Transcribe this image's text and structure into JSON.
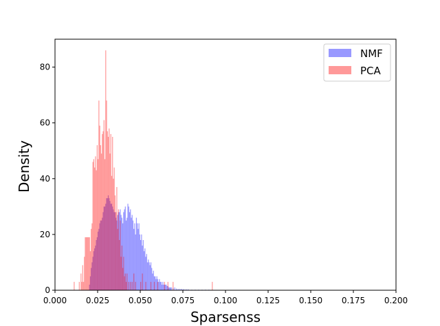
{
  "chart_data": {
    "type": "bar",
    "subtype": "overlapping-histogram",
    "title": "",
    "xlabel": "Sparsenss",
    "ylabel": "Density",
    "xlim": [
      0.0,
      0.2
    ],
    "ylim": [
      0,
      90
    ],
    "xticks": [
      "0.000",
      "0.025",
      "0.050",
      "0.075",
      "0.100",
      "0.125",
      "0.150",
      "0.175",
      "0.200"
    ],
    "yticks": [
      "0",
      "20",
      "40",
      "60",
      "80"
    ],
    "grid": false,
    "legend": {
      "position": "top-right",
      "entries": [
        "NMF",
        "PCA"
      ]
    },
    "bin_width": 0.0005,
    "series": [
      {
        "name": "NMF",
        "color": "#0000ff",
        "opacity": 0.4,
        "bins": [
          [
            0.02,
            2
          ],
          [
            0.0205,
            5
          ],
          [
            0.021,
            8
          ],
          [
            0.0215,
            10
          ],
          [
            0.022,
            12
          ],
          [
            0.0225,
            14
          ],
          [
            0.023,
            15
          ],
          [
            0.0235,
            16
          ],
          [
            0.024,
            18
          ],
          [
            0.0245,
            19
          ],
          [
            0.025,
            21
          ],
          [
            0.0255,
            22
          ],
          [
            0.026,
            24
          ],
          [
            0.0265,
            25
          ],
          [
            0.027,
            25
          ],
          [
            0.0275,
            26
          ],
          [
            0.028,
            28
          ],
          [
            0.0285,
            30
          ],
          [
            0.029,
            30
          ],
          [
            0.0295,
            31
          ],
          [
            0.03,
            33
          ],
          [
            0.0305,
            33
          ],
          [
            0.031,
            34
          ],
          [
            0.0315,
            33
          ],
          [
            0.032,
            32
          ],
          [
            0.0325,
            31
          ],
          [
            0.033,
            31
          ],
          [
            0.0335,
            30
          ],
          [
            0.034,
            29
          ],
          [
            0.0345,
            28
          ],
          [
            0.035,
            28
          ],
          [
            0.0355,
            26
          ],
          [
            0.036,
            25
          ],
          [
            0.0365,
            27
          ],
          [
            0.037,
            28
          ],
          [
            0.0375,
            28
          ],
          [
            0.038,
            29
          ],
          [
            0.0385,
            27
          ],
          [
            0.039,
            26
          ],
          [
            0.0395,
            24
          ],
          [
            0.04,
            28
          ],
          [
            0.0405,
            29
          ],
          [
            0.041,
            30
          ],
          [
            0.0415,
            25
          ],
          [
            0.042,
            26
          ],
          [
            0.0425,
            31
          ],
          [
            0.043,
            30
          ],
          [
            0.0435,
            28
          ],
          [
            0.044,
            29
          ],
          [
            0.0445,
            26
          ],
          [
            0.045,
            27
          ],
          [
            0.0455,
            25
          ],
          [
            0.046,
            22
          ],
          [
            0.0465,
            24
          ],
          [
            0.047,
            20
          ],
          [
            0.0475,
            26
          ],
          [
            0.048,
            24
          ],
          [
            0.0485,
            22
          ],
          [
            0.049,
            24
          ],
          [
            0.0495,
            20
          ],
          [
            0.05,
            18
          ],
          [
            0.0505,
            20
          ],
          [
            0.051,
            16
          ],
          [
            0.0515,
            18
          ],
          [
            0.052,
            14
          ],
          [
            0.0525,
            15
          ],
          [
            0.053,
            12
          ],
          [
            0.0535,
            13
          ],
          [
            0.054,
            10
          ],
          [
            0.0545,
            11
          ],
          [
            0.055,
            10
          ],
          [
            0.0555,
            9
          ],
          [
            0.056,
            10
          ],
          [
            0.0565,
            8
          ],
          [
            0.057,
            6
          ],
          [
            0.0575,
            7
          ],
          [
            0.058,
            5
          ],
          [
            0.0585,
            5
          ],
          [
            0.059,
            4
          ],
          [
            0.0595,
            5
          ],
          [
            0.06,
            4
          ],
          [
            0.0605,
            3
          ],
          [
            0.061,
            4
          ],
          [
            0.0615,
            3
          ],
          [
            0.062,
            3
          ],
          [
            0.0625,
            2
          ],
          [
            0.063,
            3
          ],
          [
            0.0635,
            2
          ],
          [
            0.064,
            2
          ],
          [
            0.0645,
            2
          ],
          [
            0.065,
            2
          ],
          [
            0.0655,
            1.5
          ],
          [
            0.066,
            1.5
          ],
          [
            0.0665,
            1
          ],
          [
            0.067,
            1
          ],
          [
            0.0675,
            1
          ],
          [
            0.068,
            1
          ],
          [
            0.069,
            0.8
          ],
          [
            0.07,
            1
          ],
          [
            0.071,
            0.6
          ],
          [
            0.072,
            0.5
          ],
          [
            0.073,
            0.5
          ],
          [
            0.074,
            0.5
          ],
          [
            0.075,
            0.4
          ],
          [
            0.076,
            0.3
          ],
          [
            0.077,
            0.3
          ],
          [
            0.078,
            0.3
          ],
          [
            0.08,
            0.2
          ],
          [
            0.082,
            0.2
          ],
          [
            0.084,
            0.2
          ],
          [
            0.086,
            0.2
          ],
          [
            0.088,
            0.2
          ],
          [
            0.09,
            0.2
          ]
        ]
      },
      {
        "name": "PCA",
        "color": "#ff0000",
        "opacity": 0.4,
        "bins": [
          [
            0.011,
            3
          ],
          [
            0.014,
            3
          ],
          [
            0.015,
            6
          ],
          [
            0.0155,
            3
          ],
          [
            0.016,
            9
          ],
          [
            0.0165,
            3
          ],
          [
            0.017,
            12
          ],
          [
            0.0175,
            19
          ],
          [
            0.018,
            19
          ],
          [
            0.0185,
            19
          ],
          [
            0.019,
            19
          ],
          [
            0.0195,
            19
          ],
          [
            0.02,
            19
          ],
          [
            0.0205,
            14
          ],
          [
            0.021,
            22
          ],
          [
            0.0215,
            24
          ],
          [
            0.022,
            46
          ],
          [
            0.0225,
            47
          ],
          [
            0.023,
            44
          ],
          [
            0.0235,
            48
          ],
          [
            0.024,
            43
          ],
          [
            0.0245,
            52
          ],
          [
            0.025,
            47
          ],
          [
            0.0255,
            68
          ],
          [
            0.026,
            59
          ],
          [
            0.0265,
            52
          ],
          [
            0.027,
            49
          ],
          [
            0.0275,
            56
          ],
          [
            0.028,
            57
          ],
          [
            0.0285,
            61
          ],
          [
            0.029,
            47
          ],
          [
            0.0295,
            86
          ],
          [
            0.03,
            68
          ],
          [
            0.0305,
            57
          ],
          [
            0.031,
            55
          ],
          [
            0.0315,
            58
          ],
          [
            0.032,
            49
          ],
          [
            0.0325,
            56
          ],
          [
            0.033,
            41
          ],
          [
            0.0335,
            55
          ],
          [
            0.034,
            40
          ],
          [
            0.0345,
            44
          ],
          [
            0.035,
            34
          ],
          [
            0.0355,
            28
          ],
          [
            0.036,
            37
          ],
          [
            0.0365,
            22
          ],
          [
            0.037,
            29
          ],
          [
            0.0375,
            18
          ],
          [
            0.038,
            25
          ],
          [
            0.0385,
            12
          ],
          [
            0.039,
            16
          ],
          [
            0.0395,
            8
          ],
          [
            0.04,
            12
          ],
          [
            0.0405,
            5
          ],
          [
            0.041,
            6
          ],
          [
            0.0415,
            3
          ],
          [
            0.042,
            6
          ],
          [
            0.043,
            3
          ],
          [
            0.044,
            3
          ],
          [
            0.045,
            3
          ],
          [
            0.046,
            6
          ],
          [
            0.047,
            3
          ],
          [
            0.05,
            3
          ],
          [
            0.051,
            6
          ],
          [
            0.053,
            3
          ],
          [
            0.056,
            3
          ],
          [
            0.058,
            3
          ],
          [
            0.06,
            3
          ],
          [
            0.064,
            3
          ],
          [
            0.066,
            3
          ],
          [
            0.069,
            3
          ],
          [
            0.092,
            3
          ]
        ]
      }
    ]
  }
}
